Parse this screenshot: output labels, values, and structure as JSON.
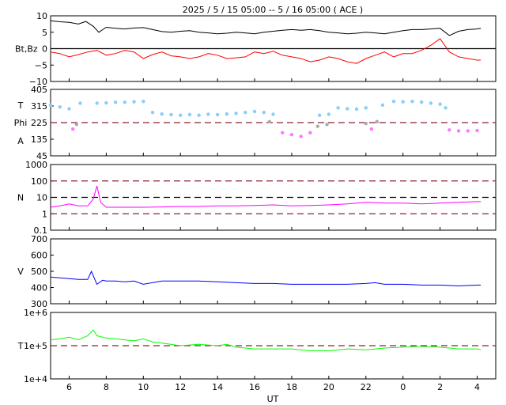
{
  "title": "2025 /  5 / 15   05:00 --  5 / 16   05:00 ( ACE )",
  "xlabel": "UT",
  "x_ticks": [
    "6",
    "8",
    "10",
    "12",
    "14",
    "16",
    "18",
    "20",
    "22",
    "0",
    "2",
    "4"
  ],
  "chart_data": [
    {
      "type": "line",
      "panel": "mag",
      "ylabel": "Bt,Bz",
      "ylim": [
        -10,
        10
      ],
      "y_ticks": [
        "10",
        "5",
        "0",
        "−5",
        "−10"
      ],
      "reference_lines": [
        0
      ],
      "series": [
        {
          "color": "#000000",
          "x": [
            5.0,
            5.5,
            6.0,
            6.5,
            6.9,
            7.3,
            7.6,
            8.0,
            8.5,
            9.0,
            9.5,
            10.0,
            10.5,
            11.0,
            11.5,
            12.0,
            12.5,
            13.0,
            13.5,
            14.0,
            14.5,
            15.0,
            15.5,
            16.0,
            16.5,
            17.0,
            17.5,
            18.0,
            18.5,
            19.0,
            19.5,
            20.0,
            20.5,
            21.0,
            21.5,
            22.0,
            22.5,
            23.0,
            23.5,
            24.0,
            24.5,
            25.0,
            25.5,
            26.0,
            26.5,
            27.0,
            27.5,
            28.0,
            28.2
          ],
          "y": [
            8.5,
            8.2,
            8.0,
            7.5,
            8.3,
            6.8,
            5.0,
            6.5,
            6.2,
            6.0,
            6.3,
            6.4,
            5.8,
            5.2,
            5.0,
            5.3,
            5.5,
            5.0,
            4.8,
            4.5,
            4.7,
            5.0,
            4.8,
            4.5,
            5.0,
            5.3,
            5.6,
            5.8,
            5.6,
            5.8,
            5.5,
            5.0,
            4.8,
            4.5,
            4.7,
            5.0,
            4.8,
            4.5,
            5.0,
            5.5,
            5.8,
            5.8,
            6.0,
            6.2,
            4.0,
            5.3,
            5.8,
            6.0,
            6.2
          ]
        },
        {
          "color": "#ff0000",
          "x": [
            5.0,
            5.5,
            6.0,
            6.5,
            7.0,
            7.5,
            8.0,
            8.5,
            9.0,
            9.5,
            10.0,
            10.5,
            11.0,
            11.5,
            12.0,
            12.5,
            13.0,
            13.5,
            14.0,
            14.5,
            15.0,
            15.5,
            16.0,
            16.5,
            17.0,
            17.5,
            18.0,
            18.5,
            19.0,
            19.5,
            20.0,
            20.5,
            21.0,
            21.5,
            22.0,
            22.5,
            23.0,
            23.5,
            24.0,
            24.5,
            25.0,
            25.5,
            26.0,
            26.5,
            27.0,
            27.5,
            28.0,
            28.2
          ],
          "y": [
            -1.0,
            -1.5,
            -2.5,
            -1.8,
            -1.0,
            -0.5,
            -2.0,
            -1.5,
            -0.5,
            -1.0,
            -3.0,
            -1.8,
            -1.0,
            -2.2,
            -2.5,
            -3.0,
            -2.5,
            -1.5,
            -2.0,
            -3.0,
            -2.8,
            -2.5,
            -1.0,
            -1.5,
            -0.8,
            -2.0,
            -2.5,
            -3.0,
            -4.0,
            -3.5,
            -2.5,
            -3.0,
            -4.0,
            -4.5,
            -3.0,
            -2.0,
            -1.0,
            -2.5,
            -1.5,
            -1.5,
            -0.5,
            1.0,
            3.0,
            -1.0,
            -2.5,
            -3.0,
            -3.5,
            -3.5
          ]
        }
      ]
    },
    {
      "type": "scatter",
      "panel": "phi",
      "ylabel_lines": [
        "T",
        "Phi",
        "A"
      ],
      "ylim": [
        45,
        405
      ],
      "y_ticks": [
        "405",
        "315",
        "225",
        "135",
        "45"
      ],
      "reference_lines": [
        225
      ],
      "series": [
        {
          "color": "#87cefa",
          "x": [
            5.0,
            5.5,
            6.0,
            6.6,
            7.5,
            8.0,
            8.5,
            9.0,
            9.5,
            10.0,
            10.5,
            11.0,
            11.5,
            12.0,
            12.5,
            13.0,
            13.5,
            14.0,
            14.5,
            15.0,
            15.5,
            16.0,
            16.5,
            17.0,
            19.5,
            20.0,
            20.5,
            21.0,
            21.5,
            22.0,
            22.9,
            23.5,
            24.0,
            24.5,
            25.0,
            25.5,
            26.0,
            26.3
          ],
          "y": [
            320,
            310,
            300,
            330,
            330,
            332,
            335,
            335,
            338,
            340,
            280,
            272,
            268,
            265,
            268,
            265,
            270,
            268,
            272,
            275,
            280,
            285,
            280,
            270,
            265,
            270,
            305,
            300,
            298,
            305,
            320,
            340,
            338,
            340,
            336,
            330,
            325,
            305
          ]
        },
        {
          "color": "#ff77ff",
          "x": [
            6.2,
            17.5,
            18.0,
            18.5,
            19.0,
            22.3,
            26.5,
            27.0,
            27.5,
            28.0
          ],
          "y": [
            190,
            170,
            160,
            150,
            170,
            190,
            185,
            180,
            180,
            182
          ]
        },
        {
          "color": "#aaaaaa",
          "x": [
            6.4,
            16.8,
            19.4,
            19.9,
            22.0,
            22.6
          ],
          "y": [
            215,
            230,
            205,
            215,
            220,
            230
          ]
        }
      ]
    },
    {
      "type": "line",
      "panel": "density",
      "ylabel": "N",
      "yscale": "log",
      "ylim": [
        0.1,
        1000
      ],
      "y_ticks": [
        "1000",
        "100",
        "10",
        "1",
        "0.1"
      ],
      "reference_lines": [
        100,
        10,
        1
      ],
      "series": [
        {
          "color": "#ff00ff",
          "x": [
            5.0,
            5.5,
            6.0,
            6.5,
            7.0,
            7.3,
            7.5,
            7.7,
            8.0,
            9.0,
            10.0,
            11.0,
            12.0,
            13.0,
            14.0,
            15.0,
            16.0,
            17.0,
            18.0,
            19.0,
            20.0,
            21.0,
            22.0,
            23.0,
            24.0,
            25.0,
            26.0,
            27.0,
            28.0,
            28.2
          ],
          "y": [
            2.5,
            3.0,
            4.0,
            3.0,
            3.0,
            8.0,
            50,
            5.0,
            2.5,
            2.5,
            2.5,
            2.6,
            2.8,
            2.8,
            3.0,
            3.0,
            3.2,
            3.5,
            3.0,
            3.2,
            3.5,
            4.0,
            5.0,
            4.5,
            4.5,
            4.0,
            4.5,
            5.0,
            5.5,
            5.5
          ]
        }
      ]
    },
    {
      "type": "line",
      "panel": "speed",
      "ylabel": "V",
      "ylim": [
        300,
        700
      ],
      "y_ticks": [
        "700",
        "600",
        "500",
        "400",
        "300"
      ],
      "series": [
        {
          "color": "#0000ff",
          "x": [
            5.0,
            5.5,
            6.0,
            6.5,
            7.0,
            7.2,
            7.5,
            7.8,
            8.0,
            8.5,
            9.0,
            9.5,
            10.0,
            11.0,
            12.0,
            13.0,
            14.0,
            15.0,
            16.0,
            17.0,
            18.0,
            19.0,
            20.0,
            21.0,
            22.0,
            22.5,
            23.0,
            24.0,
            25.0,
            26.0,
            27.0,
            28.0,
            28.2
          ],
          "y": [
            465,
            460,
            455,
            450,
            450,
            500,
            420,
            445,
            440,
            440,
            435,
            440,
            420,
            440,
            440,
            440,
            435,
            430,
            425,
            425,
            420,
            420,
            420,
            420,
            425,
            430,
            420,
            420,
            415,
            415,
            410,
            415,
            415
          ]
        }
      ]
    },
    {
      "type": "line",
      "panel": "temperature",
      "ylabel": "T",
      "yscale": "log",
      "ylim": [
        10000,
        1000000
      ],
      "y_ticks": [
        "1e+6",
        "1e+5",
        "1e+4"
      ],
      "reference_lines": [
        100000
      ],
      "series": [
        {
          "color": "#00ff00",
          "x": [
            5.0,
            5.5,
            6.0,
            6.5,
            7.0,
            7.3,
            7.5,
            8.0,
            8.5,
            9.0,
            9.5,
            10.0,
            10.5,
            11.0,
            12.0,
            13.0,
            14.0,
            14.5,
            15.0,
            16.0,
            17.0,
            18.0,
            19.0,
            20.0,
            21.0,
            22.0,
            23.0,
            24.0,
            25.0,
            26.0,
            27.0,
            28.0,
            28.2
          ],
          "y": [
            150000,
            160000,
            180000,
            150000,
            200000,
            300000,
            200000,
            170000,
            160000,
            150000,
            140000,
            160000,
            130000,
            120000,
            100000,
            110000,
            100000,
            110000,
            90000,
            80000,
            80000,
            80000,
            70000,
            70000,
            80000,
            75000,
            85000,
            90000,
            95000,
            90000,
            80000,
            80000,
            75000
          ]
        }
      ]
    }
  ]
}
